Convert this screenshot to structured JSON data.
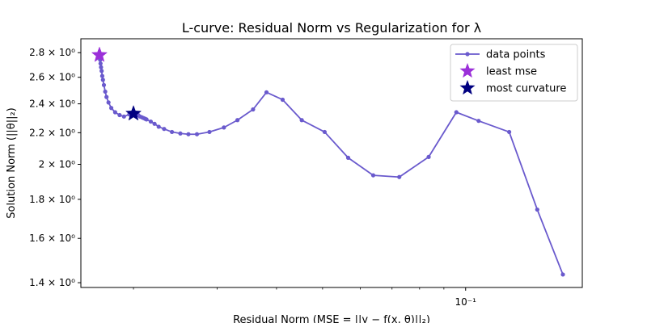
{
  "chart_data": {
    "type": "line",
    "title": "L-curve: Residual Norm vs Regularization for λ",
    "xlabel": "Residual Norm (MSE = ||y − f(x, θ)||₂)",
    "ylabel": "Solution Norm (||θ||₂)",
    "x_scale": "log",
    "y_scale": "log",
    "xlim": [
      0.0155,
      0.176
    ],
    "ylim": [
      1.38,
      2.92
    ],
    "x_ticks": [
      {
        "value": 0.1,
        "label": "10⁻¹"
      }
    ],
    "y_ticks": [
      {
        "value": 1.4,
        "label": "1.4 × 10⁰"
      },
      {
        "value": 1.6,
        "label": "1.6 × 10⁰"
      },
      {
        "value": 1.8,
        "label": "1.8 × 10⁰"
      },
      {
        "value": 2.0,
        "label": "2 × 10⁰"
      },
      {
        "value": 2.2,
        "label": "2.2 × 10⁰"
      },
      {
        "value": 2.4,
        "label": "2.4 × 10⁰"
      },
      {
        "value": 2.6,
        "label": "2.6 × 10⁰"
      },
      {
        "value": 2.8,
        "label": "2.8 × 10⁰"
      }
    ],
    "x_minor_ticks": [
      0.02,
      0.03,
      0.04,
      0.05,
      0.06,
      0.07,
      0.08,
      0.09
    ],
    "legend_position": "top-right",
    "series": [
      {
        "name": "data points",
        "color": "#6a5acd",
        "marker": "circle",
        "x": [
          0.01696,
          0.01699,
          0.01702,
          0.01705,
          0.01709,
          0.01714,
          0.01719,
          0.01725,
          0.01733,
          0.01744,
          0.01755,
          0.01772,
          0.01796,
          0.0183,
          0.0187,
          0.0191,
          0.0196,
          0.02,
          0.02013,
          0.0203,
          0.02047,
          0.02064,
          0.02082,
          0.02098,
          0.02115,
          0.0213,
          0.02175,
          0.02215,
          0.0226,
          0.0232,
          0.0241,
          0.0251,
          0.0261,
          0.0272,
          0.0289,
          0.031,
          0.0331,
          0.0357,
          0.0381,
          0.0412,
          0.0452,
          0.0505,
          0.0566,
          0.0639,
          0.0725,
          0.0836,
          0.0956,
          0.1065,
          0.1235,
          0.1415,
          0.1602
        ],
        "y": [
          2.78,
          2.76,
          2.74,
          2.71,
          2.68,
          2.65,
          2.61,
          2.58,
          2.54,
          2.49,
          2.45,
          2.41,
          2.37,
          2.34,
          2.32,
          2.31,
          2.325,
          2.33,
          2.33,
          2.325,
          2.32,
          2.31,
          2.305,
          2.3,
          2.295,
          2.29,
          2.275,
          2.26,
          2.24,
          2.225,
          2.205,
          2.195,
          2.19,
          2.19,
          2.205,
          2.235,
          2.285,
          2.36,
          2.485,
          2.43,
          2.285,
          2.205,
          2.04,
          1.935,
          1.925,
          2.045,
          2.34,
          2.28,
          2.205,
          1.745,
          1.435
        ]
      },
      {
        "name": "least mse",
        "color": "#9b30d9",
        "marker": "star",
        "x": [
          0.01696
        ],
        "y": [
          2.78
        ]
      },
      {
        "name": "most curvature",
        "color": "#000080",
        "marker": "star",
        "x": [
          0.02
        ],
        "y": [
          2.33
        ]
      }
    ]
  }
}
